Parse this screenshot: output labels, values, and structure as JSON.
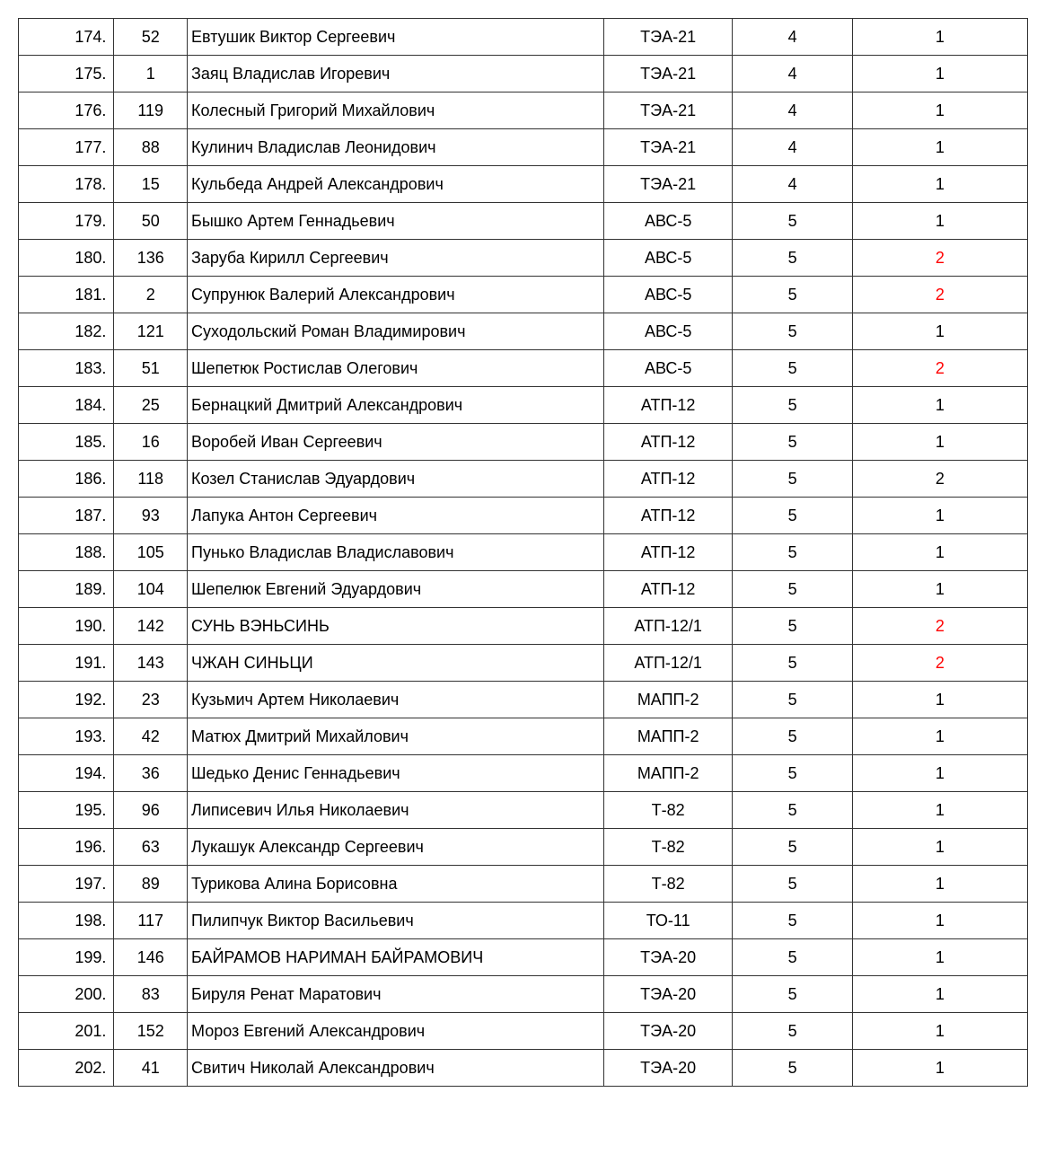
{
  "table": {
    "columns": [
      "index",
      "id",
      "name",
      "group",
      "val1",
      "val2"
    ],
    "rows": [
      {
        "index": "174.",
        "id": "52",
        "name": "Евтушик Виктор Сергеевич",
        "group": "ТЭА-21",
        "val1": "4",
        "val2": "1",
        "val2_red": false
      },
      {
        "index": "175.",
        "id": "1",
        "name": "Заяц Владислав Игоревич",
        "group": "ТЭА-21",
        "val1": "4",
        "val2": "1",
        "val2_red": false
      },
      {
        "index": "176.",
        "id": "119",
        "name": "Колесный Григорий Михайлович",
        "group": "ТЭА-21",
        "val1": "4",
        "val2": "1",
        "val2_red": false
      },
      {
        "index": "177.",
        "id": "88",
        "name": "Кулинич Владислав Леонидович",
        "group": "ТЭА-21",
        "val1": "4",
        "val2": "1",
        "val2_red": false
      },
      {
        "index": "178.",
        "id": "15",
        "name": "Кульбеда Андрей Александрович",
        "group": "ТЭА-21",
        "val1": "4",
        "val2": "1",
        "val2_red": false
      },
      {
        "index": "179.",
        "id": "50",
        "name": "Бышко Артем Геннадьевич",
        "group": "АВС-5",
        "val1": "5",
        "val2": "1",
        "val2_red": false
      },
      {
        "index": "180.",
        "id": "136",
        "name": "Заруба Кирилл Сергеевич",
        "group": "АВС-5",
        "val1": "5",
        "val2": "2",
        "val2_red": true
      },
      {
        "index": "181.",
        "id": "2",
        "name": "Супрунюк Валерий Александрович",
        "group": "АВС-5",
        "val1": "5",
        "val2": "2",
        "val2_red": true
      },
      {
        "index": "182.",
        "id": "121",
        "name": "Суходольский Роман Владимирович",
        "group": "АВС-5",
        "val1": "5",
        "val2": "1",
        "val2_red": false
      },
      {
        "index": "183.",
        "id": "51",
        "name": "Шепетюк Ростислав Олегович",
        "group": "АВС-5",
        "val1": "5",
        "val2": "2",
        "val2_red": true
      },
      {
        "index": "184.",
        "id": "25",
        "name": "Бернацкий Дмитрий Александрович",
        "group": "АТП-12",
        "val1": "5",
        "val2": "1",
        "val2_red": false
      },
      {
        "index": "185.",
        "id": "16",
        "name": "Воробей Иван Сергеевич",
        "group": "АТП-12",
        "val1": "5",
        "val2": "1",
        "val2_red": false
      },
      {
        "index": "186.",
        "id": "118",
        "name": "Козел Станислав Эдуардович",
        "group": "АТП-12",
        "val1": "5",
        "val2": "2",
        "val2_red": false
      },
      {
        "index": "187.",
        "id": "93",
        "name": "Лапука Антон  Сергеевич",
        "group": "АТП-12",
        "val1": "5",
        "val2": "1",
        "val2_red": false
      },
      {
        "index": "188.",
        "id": "105",
        "name": "Пунько Владислав Владиславович",
        "group": "АТП-12",
        "val1": "5",
        "val2": "1",
        "val2_red": false
      },
      {
        "index": "189.",
        "id": "104",
        "name": "Шепелюк Евгений Эдуардович",
        "group": "АТП-12",
        "val1": "5",
        "val2": "1",
        "val2_red": false
      },
      {
        "index": "190.",
        "id": "142",
        "name": "СУНЬ ВЭНЬСИНЬ",
        "group": "АТП-12/1",
        "val1": "5",
        "val2": "2",
        "val2_red": true
      },
      {
        "index": "191.",
        "id": "143",
        "name": "ЧЖАН СИНЬЦИ",
        "group": "АТП-12/1",
        "val1": "5",
        "val2": "2",
        "val2_red": true
      },
      {
        "index": "192.",
        "id": "23",
        "name": "Кузьмич Артем Николаевич",
        "group": "МАПП-2",
        "val1": "5",
        "val2": "1",
        "val2_red": false
      },
      {
        "index": "193.",
        "id": "42",
        "name": "Матюх Дмитрий Михайлович",
        "group": "МАПП-2",
        "val1": "5",
        "val2": "1",
        "val2_red": false
      },
      {
        "index": "194.",
        "id": "36",
        "name": "Шедько Денис Геннадьевич",
        "group": "МАПП-2",
        "val1": "5",
        "val2": "1",
        "val2_red": false
      },
      {
        "index": "195.",
        "id": "96",
        "name": "Липисевич Илья Николаевич",
        "group": "Т-82",
        "val1": "5",
        "val2": "1",
        "val2_red": false
      },
      {
        "index": "196.",
        "id": "63",
        "name": "Лукашук Александр Сергеевич",
        "group": "Т-82",
        "val1": "5",
        "val2": "1",
        "val2_red": false
      },
      {
        "index": "197.",
        "id": "89",
        "name": "Турикова Алина Борисовна",
        "group": "Т-82",
        "val1": "5",
        "val2": "1",
        "val2_red": false
      },
      {
        "index": "198.",
        "id": "117",
        "name": "Пилипчук Виктор Васильевич",
        "group": "ТО-11",
        "val1": "5",
        "val2": "1",
        "val2_red": false
      },
      {
        "index": "199.",
        "id": "146",
        "name": "БАЙРАМОВ НАРИМАН БАЙРАМОВИЧ",
        "group": "ТЭА-20",
        "val1": "5",
        "val2": "1",
        "val2_red": false
      },
      {
        "index": "200.",
        "id": "83",
        "name": "Бируля Ренат Маратович",
        "group": "ТЭА-20",
        "val1": "5",
        "val2": "1",
        "val2_red": false
      },
      {
        "index": "201.",
        "id": "152",
        "name": "Мороз Евгений Александрович",
        "group": "ТЭА-20",
        "val1": "5",
        "val2": "1",
        "val2_red": false
      },
      {
        "index": "202.",
        "id": "41",
        "name": "Свитич Николай Александрович",
        "group": "ТЭА-20",
        "val1": "5",
        "val2": "1",
        "val2_red": false
      }
    ]
  }
}
